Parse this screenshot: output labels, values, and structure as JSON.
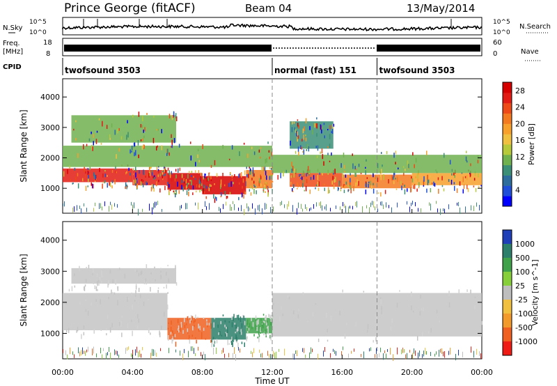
{
  "header": {
    "station": "Prince George (fitACF)",
    "beam": "Beam 04",
    "date": "13/May/2014"
  },
  "top_panels": {
    "nsky_label": "N.Sky",
    "nsky_ticks": [
      "10^5",
      "10^0"
    ],
    "nsearch_label": "N.Search",
    "nsearch_ticks": [
      "10^5",
      "10^0"
    ],
    "freq_label_1": "Freq.",
    "freq_label_2": "[MHz]",
    "freq_ticks": [
      "18",
      "8"
    ],
    "nave_label": "Nave",
    "nave_ticks": [
      "60",
      "0"
    ],
    "cpid_label": "CPID",
    "cpid_segments": [
      {
        "label": "twofsound 3503",
        "start_hour": 0,
        "end_hour": 12
      },
      {
        "label": "normal (fast) 151",
        "start_hour": 12,
        "end_hour": 18
      },
      {
        "label": "twofsound 3503",
        "start_hour": 18,
        "end_hour": 24
      }
    ]
  },
  "chart_data": [
    {
      "type": "heatmap",
      "title": "",
      "xlabel": "Time UT",
      "ylabel": "Slant Range [km]",
      "xlim": [
        0,
        24
      ],
      "ylim": [
        180,
        4600
      ],
      "x_ticks": [
        "00:00",
        "04:00",
        "08:00",
        "12:00",
        "16:00",
        "20:00",
        "00:00"
      ],
      "y_ticks": [
        1000,
        2000,
        3000,
        4000
      ],
      "colorbar": {
        "label": "Power [dB]",
        "ticks": [
          4,
          8,
          12,
          16,
          20,
          24,
          28
        ],
        "range": [
          0,
          30
        ],
        "colors": [
          "#0000ff",
          "#1f4fd8",
          "#2c6d9d",
          "#3b8f77",
          "#6fb04f",
          "#b6c93a",
          "#f0c040",
          "#f7a02c",
          "#f47a20",
          "#ee4a18",
          "#e21b14",
          "#d60000"
        ]
      },
      "bands": [
        {
          "start_hour": 0.0,
          "end_hour": 4.0,
          "range_km": [
            1200,
            1650
          ],
          "power_db": 26
        },
        {
          "start_hour": 4.0,
          "end_hour": 6.0,
          "range_km": [
            1100,
            1600
          ],
          "power_db": 26
        },
        {
          "start_hour": 6.0,
          "end_hour": 8.0,
          "range_km": [
            950,
            1500
          ],
          "power_db": 28
        },
        {
          "start_hour": 8.0,
          "end_hour": 10.5,
          "range_km": [
            800,
            1400
          ],
          "power_db": 28
        },
        {
          "start_hour": 10.5,
          "end_hour": 12.0,
          "range_km": [
            1000,
            1600
          ],
          "power_db": 20
        },
        {
          "start_hour": 13.0,
          "end_hour": 16.0,
          "range_km": [
            1050,
            1500
          ],
          "power_db": 24
        },
        {
          "start_hour": 16.0,
          "end_hour": 20.0,
          "range_km": [
            1000,
            1450
          ],
          "power_db": 22
        },
        {
          "start_hour": 20.0,
          "end_hour": 24.0,
          "range_km": [
            1100,
            1500
          ],
          "power_db": 18
        },
        {
          "start_hour": 0.0,
          "end_hour": 12.0,
          "range_km": [
            1700,
            2400
          ],
          "power_db": 12
        },
        {
          "start_hour": 0.5,
          "end_hour": 6.5,
          "range_km": [
            2500,
            3400
          ],
          "power_db": 10
        },
        {
          "start_hour": 12.0,
          "end_hour": 24.0,
          "range_km": [
            1500,
            2100
          ],
          "power_db": 10
        },
        {
          "start_hour": 13.0,
          "end_hour": 15.5,
          "range_km": [
            2300,
            3200
          ],
          "power_db": 8
        }
      ]
    },
    {
      "type": "heatmap",
      "title": "",
      "xlabel": "Time UT",
      "ylabel": "Slant Range [km]",
      "xlim": [
        0,
        24
      ],
      "ylim": [
        180,
        4600
      ],
      "x_ticks": [
        "00:00",
        "04:00",
        "08:00",
        "12:00",
        "16:00",
        "20:00",
        "00:00"
      ],
      "y_ticks": [
        1000,
        2000,
        3000,
        4000
      ],
      "colorbar": {
        "label": "Velocity [m s^-1]",
        "ticks": [
          "1000",
          "500",
          "100",
          "25",
          "-25",
          "-100",
          "-500",
          "-1000"
        ],
        "colors": [
          "#1f3fb8",
          "#2c7f6a",
          "#3fa24a",
          "#86cf3a",
          "#bebebe",
          "#f1c040",
          "#f39a2c",
          "#f06020",
          "#ee1c14"
        ]
      },
      "bands": [
        {
          "start_hour": 0.0,
          "end_hour": 6.0,
          "range_km": [
            1100,
            2300
          ],
          "velocity": "ground (gray)"
        },
        {
          "start_hour": 6.0,
          "end_hour": 8.5,
          "range_km": [
            800,
            1500
          ],
          "velocity": -500
        },
        {
          "start_hour": 8.5,
          "end_hour": 10.5,
          "range_km": [
            800,
            1500
          ],
          "velocity": 500
        },
        {
          "start_hour": 10.5,
          "end_hour": 12.0,
          "range_km": [
            1000,
            1500
          ],
          "velocity": 100
        },
        {
          "start_hour": 12.0,
          "end_hour": 24.0,
          "range_km": [
            900,
            2300
          ],
          "velocity": "ground (gray)"
        },
        {
          "start_hour": 0.5,
          "end_hour": 6.5,
          "range_km": [
            2600,
            3100
          ],
          "velocity": "ground (gray)"
        }
      ]
    }
  ]
}
